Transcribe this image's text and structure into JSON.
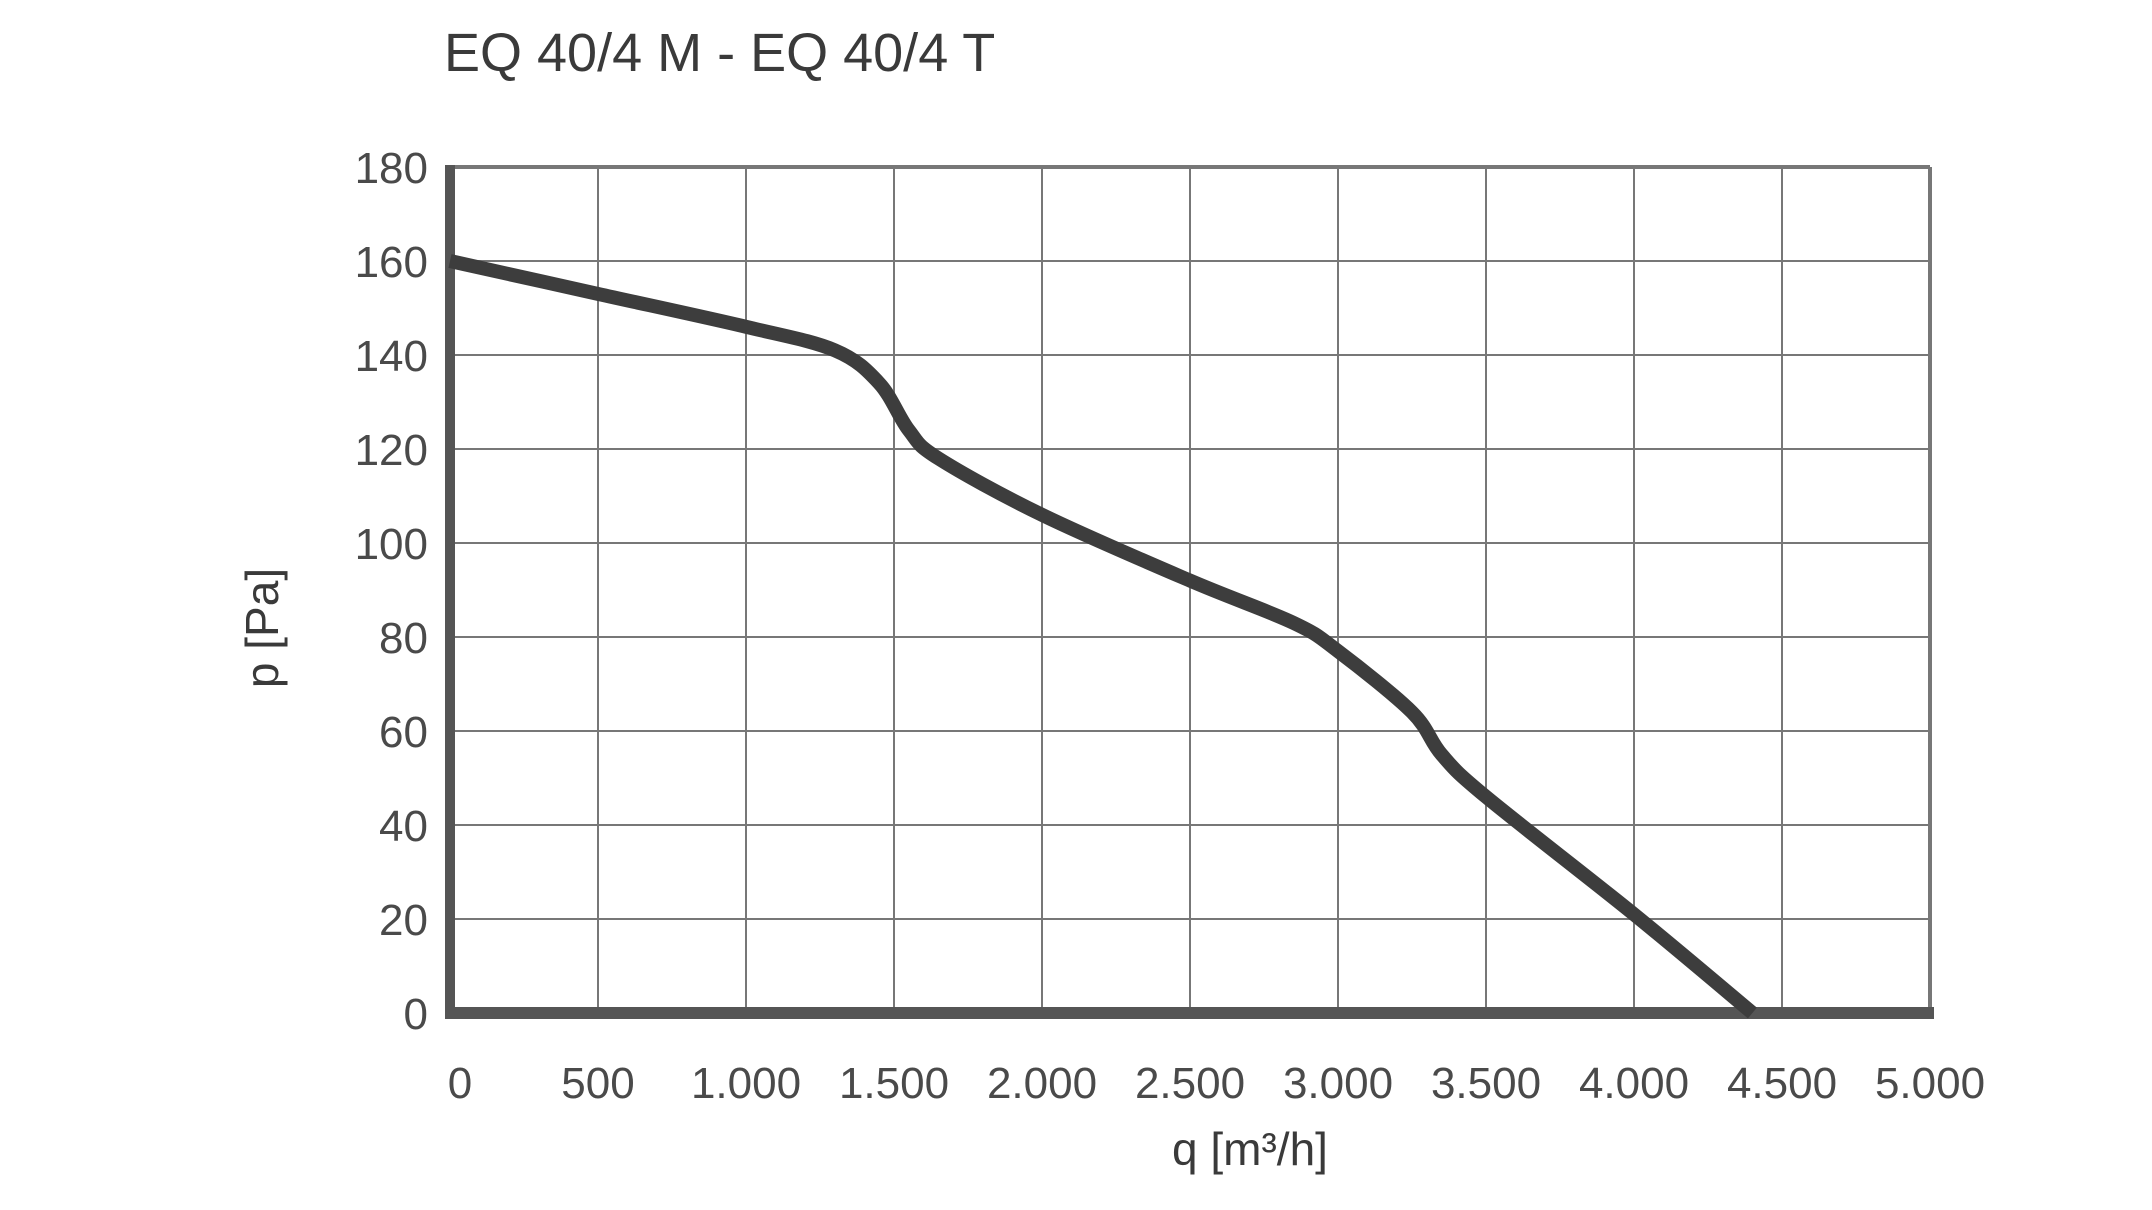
{
  "chart_data": {
    "type": "line",
    "title": "EQ 40/4 M - EQ 40/4 T",
    "xlabel": "q [m³/h]",
    "ylabel": "p [Pa]",
    "xlim": [
      0,
      5000
    ],
    "ylim": [
      0,
      180
    ],
    "grid": true,
    "x_ticks": [
      0,
      500,
      1000,
      1500,
      2000,
      2500,
      3000,
      3500,
      4000,
      4500,
      5000
    ],
    "x_tick_labels": [
      "0",
      "500",
      "1.000",
      "1.500",
      "2.000",
      "2.500",
      "3.000",
      "3.500",
      "4.000",
      "4.500",
      "5.000"
    ],
    "y_ticks": [
      0,
      20,
      40,
      60,
      80,
      100,
      120,
      140,
      160,
      180
    ],
    "y_tick_labels": [
      "0",
      "20",
      "40",
      "60",
      "80",
      "100",
      "120",
      "140",
      "160",
      "180"
    ],
    "series": [
      {
        "color": "#3d3d3d",
        "x": [
          0,
          500,
          1000,
          1300,
          1450,
          1550,
          1650,
          2000,
          2500,
          2850,
          3000,
          3250,
          3350,
          3500,
          4000,
          4400
        ],
        "y": [
          160,
          153,
          146,
          141,
          134,
          124,
          118,
          106,
          92,
          83,
          77,
          64,
          55,
          46,
          21,
          0
        ]
      }
    ]
  }
}
